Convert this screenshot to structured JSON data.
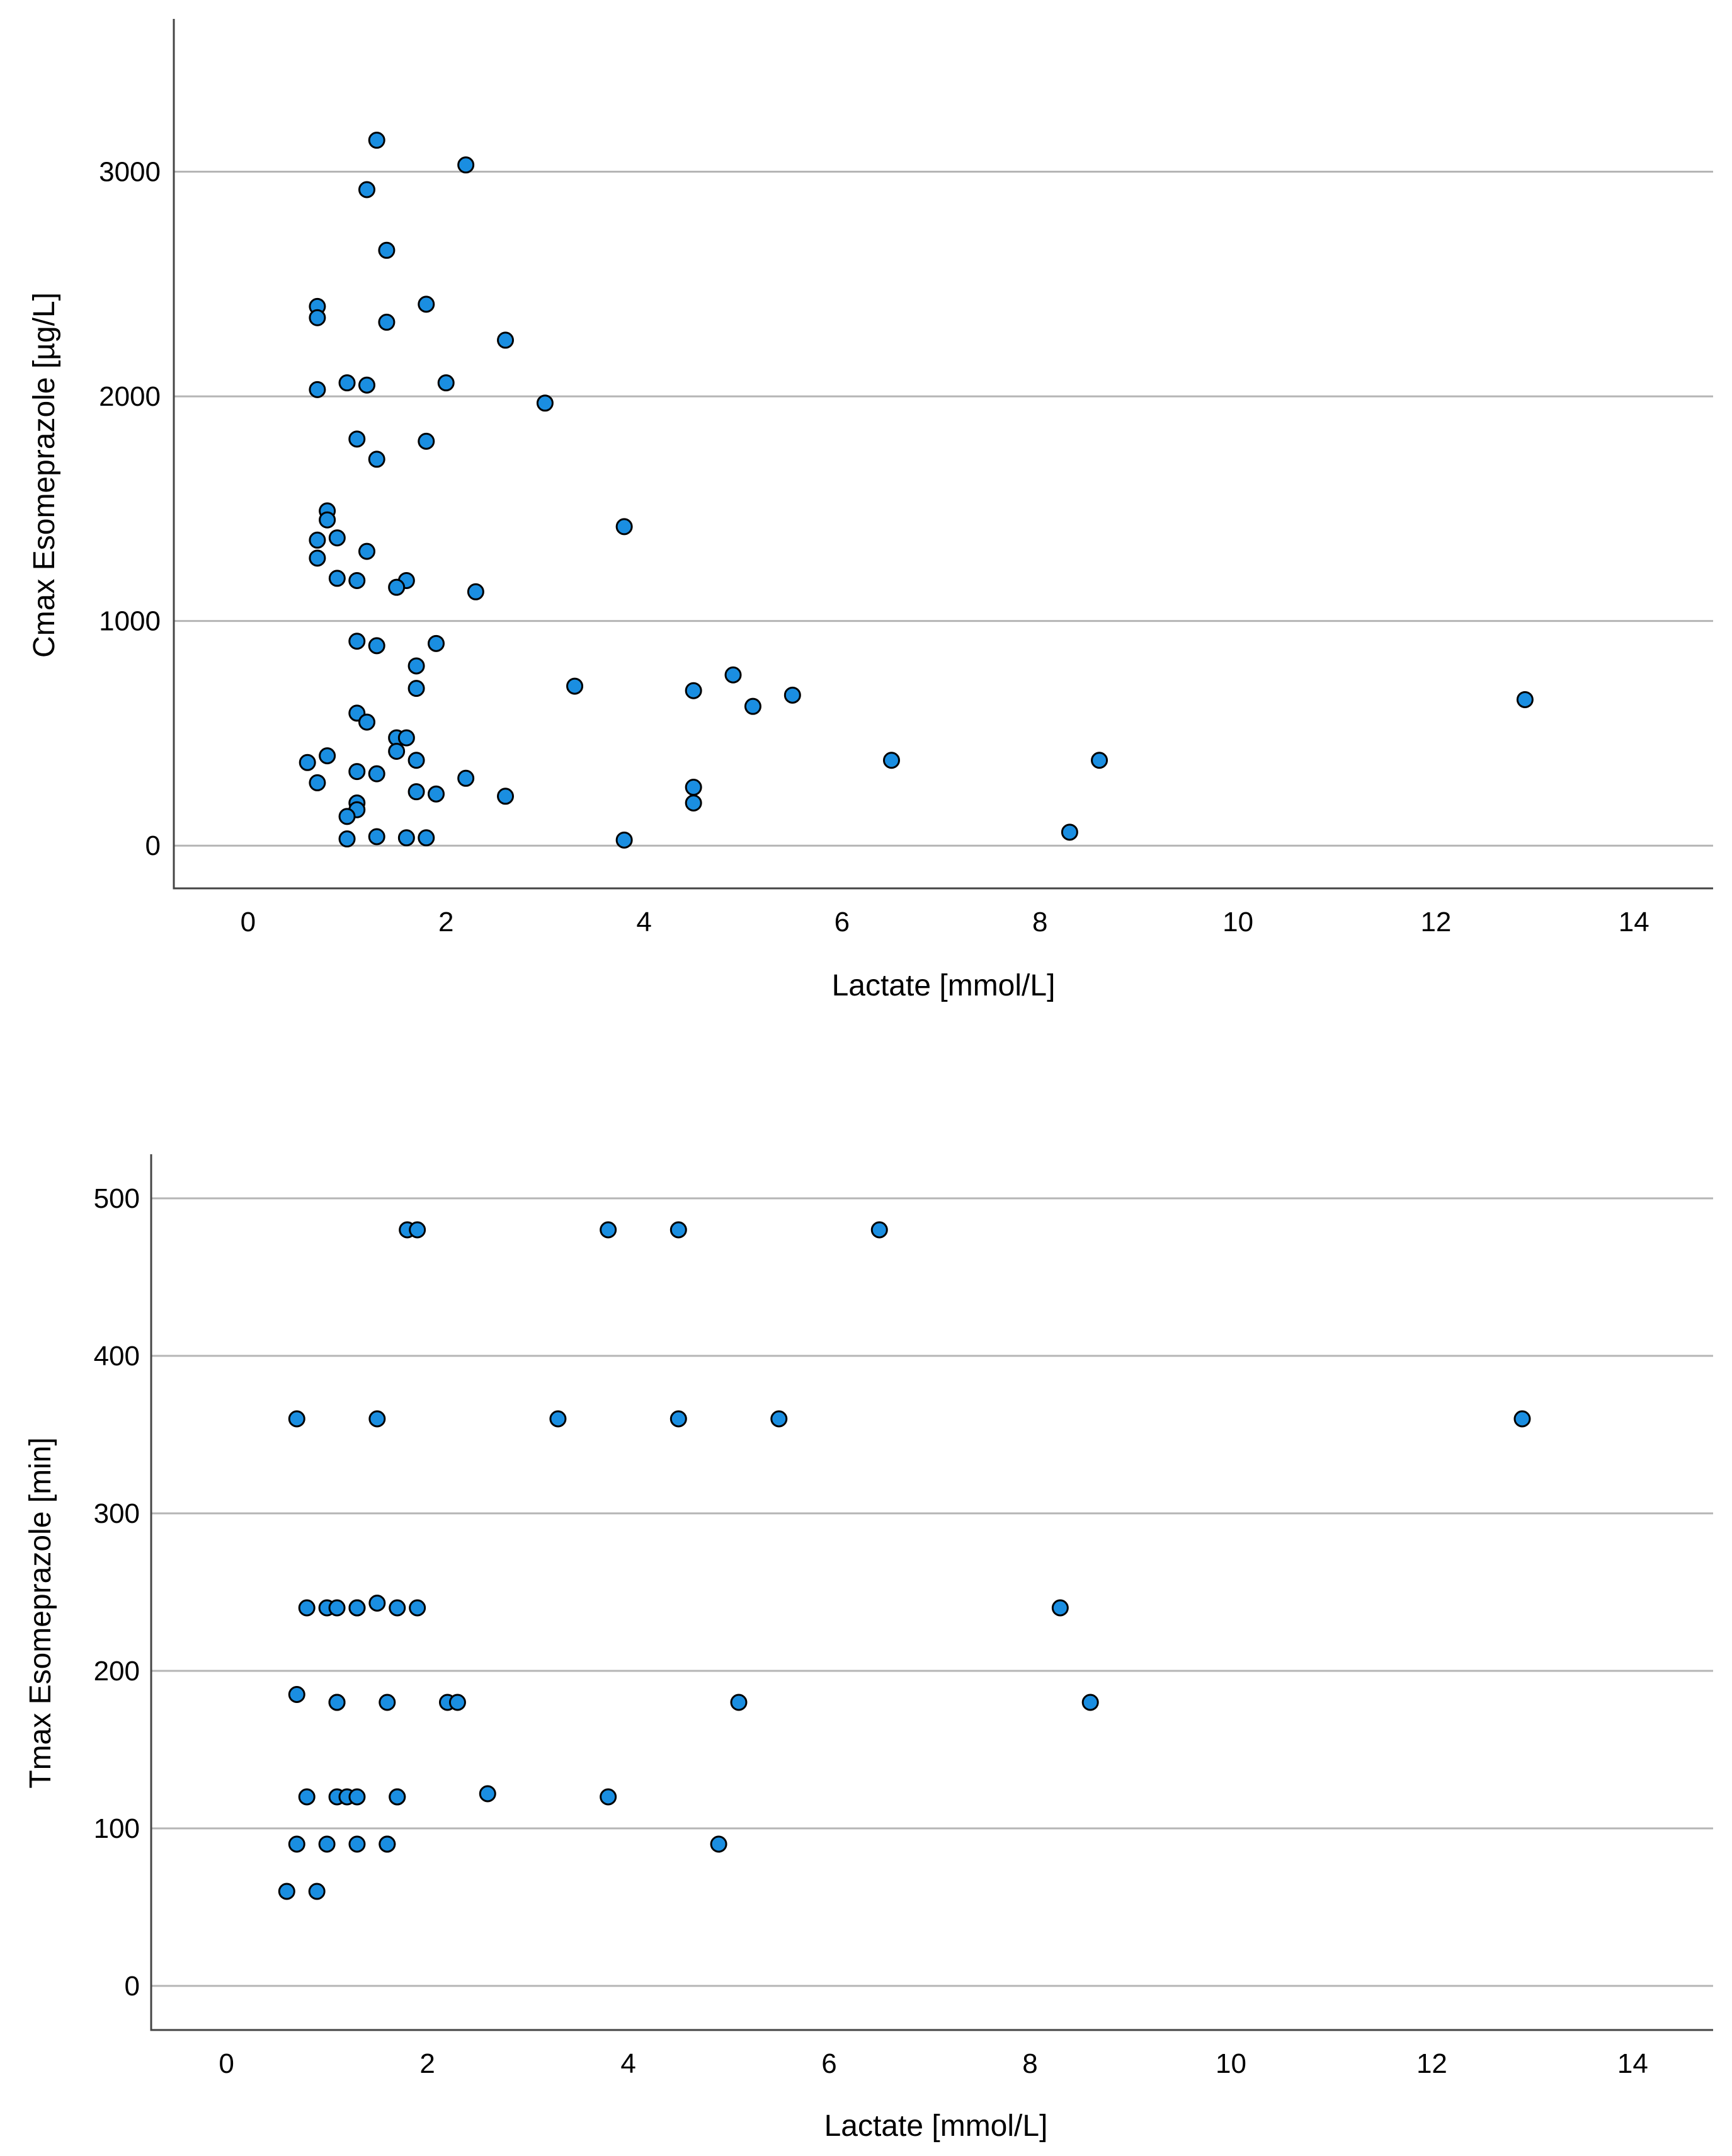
{
  "chart_data": [
    {
      "type": "scatter",
      "title": "",
      "xlabel": "Lactate [mmol/L]",
      "ylabel": "Cmax Esomeprazole [µg/L]",
      "xlim": [
        -0.75,
        14.8
      ],
      "ylim": [
        -190,
        3680
      ],
      "xticks": [
        0,
        2,
        4,
        6,
        8,
        10,
        12,
        14
      ],
      "yticks": [
        0,
        1000,
        2000,
        3000
      ],
      "grid": "horizontal",
      "legend": "none",
      "color": "#1a8ee1",
      "points": [
        [
          1.3,
          3140
        ],
        [
          2.2,
          3030
        ],
        [
          1.2,
          2920
        ],
        [
          1.4,
          2650
        ],
        [
          0.7,
          2400
        ],
        [
          0.7,
          2350
        ],
        [
          1.4,
          2330
        ],
        [
          1.8,
          2410
        ],
        [
          2.6,
          2250
        ],
        [
          1.0,
          2060
        ],
        [
          1.2,
          2050
        ],
        [
          2.0,
          2060
        ],
        [
          0.7,
          2030
        ],
        [
          3.0,
          1970
        ],
        [
          1.1,
          1810
        ],
        [
          1.8,
          1800
        ],
        [
          1.3,
          1720
        ],
        [
          0.8,
          1490
        ],
        [
          0.8,
          1450
        ],
        [
          3.8,
          1420
        ],
        [
          0.7,
          1360
        ],
        [
          0.9,
          1370
        ],
        [
          1.2,
          1310
        ],
        [
          0.7,
          1280
        ],
        [
          0.9,
          1190
        ],
        [
          1.1,
          1180
        ],
        [
          1.6,
          1180
        ],
        [
          1.5,
          1150
        ],
        [
          2.3,
          1130
        ],
        [
          1.1,
          910
        ],
        [
          1.3,
          890
        ],
        [
          1.9,
          900
        ],
        [
          1.7,
          800
        ],
        [
          1.7,
          700
        ],
        [
          3.3,
          710
        ],
        [
          4.5,
          690
        ],
        [
          4.9,
          760
        ],
        [
          5.5,
          670
        ],
        [
          5.1,
          620
        ],
        [
          12.9,
          650
        ],
        [
          1.1,
          590
        ],
        [
          1.2,
          550
        ],
        [
          1.5,
          480
        ],
        [
          1.6,
          480
        ],
        [
          1.5,
          420
        ],
        [
          0.8,
          400
        ],
        [
          0.6,
          370
        ],
        [
          1.7,
          380
        ],
        [
          6.5,
          380
        ],
        [
          8.6,
          380
        ],
        [
          1.1,
          330
        ],
        [
          1.3,
          320
        ],
        [
          2.2,
          300
        ],
        [
          0.7,
          280
        ],
        [
          4.5,
          260
        ],
        [
          1.7,
          240
        ],
        [
          1.9,
          230
        ],
        [
          2.6,
          220
        ],
        [
          1.1,
          190
        ],
        [
          4.5,
          190
        ],
        [
          1.1,
          160
        ],
        [
          1.0,
          130
        ],
        [
          8.3,
          60
        ],
        [
          1.3,
          40
        ],
        [
          1.6,
          35
        ],
        [
          1.8,
          35
        ],
        [
          1.0,
          30
        ],
        [
          3.8,
          25
        ]
      ]
    },
    {
      "type": "scatter",
      "title": "",
      "xlabel": "Lactate [mmol/L]",
      "ylabel": "Tmax Esomeprazole [min]",
      "xlim": [
        -0.75,
        14.8
      ],
      "ylim": [
        -28,
        528
      ],
      "xticks": [
        0,
        2,
        4,
        6,
        8,
        10,
        12,
        14
      ],
      "yticks": [
        0,
        100,
        200,
        300,
        400,
        500
      ],
      "grid": "horizontal",
      "legend": "none",
      "color": "#1a8ee1",
      "points": [
        [
          1.8,
          480
        ],
        [
          1.9,
          480
        ],
        [
          3.8,
          480
        ],
        [
          4.5,
          480
        ],
        [
          6.5,
          480
        ],
        [
          0.7,
          360
        ],
        [
          1.5,
          360
        ],
        [
          3.3,
          360
        ],
        [
          4.5,
          360
        ],
        [
          5.5,
          360
        ],
        [
          12.9,
          360
        ],
        [
          0.8,
          240
        ],
        [
          1.0,
          240
        ],
        [
          1.1,
          240
        ],
        [
          1.3,
          240
        ],
        [
          1.3,
          240
        ],
        [
          1.5,
          243
        ],
        [
          1.7,
          240
        ],
        [
          1.9,
          240
        ],
        [
          8.3,
          240
        ],
        [
          0.7,
          185
        ],
        [
          1.1,
          180
        ],
        [
          1.1,
          180
        ],
        [
          1.6,
          180
        ],
        [
          2.2,
          180
        ],
        [
          2.3,
          180
        ],
        [
          5.1,
          180
        ],
        [
          8.6,
          180
        ],
        [
          0.8,
          120
        ],
        [
          1.1,
          120
        ],
        [
          1.2,
          120
        ],
        [
          1.3,
          120
        ],
        [
          1.7,
          120
        ],
        [
          1.7,
          120
        ],
        [
          2.6,
          122
        ],
        [
          3.8,
          120
        ],
        [
          0.7,
          90
        ],
        [
          1.0,
          90
        ],
        [
          1.3,
          90
        ],
        [
          1.6,
          90
        ],
        [
          1.6,
          90
        ],
        [
          4.9,
          90
        ],
        [
          0.6,
          60
        ],
        [
          0.9,
          60
        ]
      ]
    }
  ]
}
